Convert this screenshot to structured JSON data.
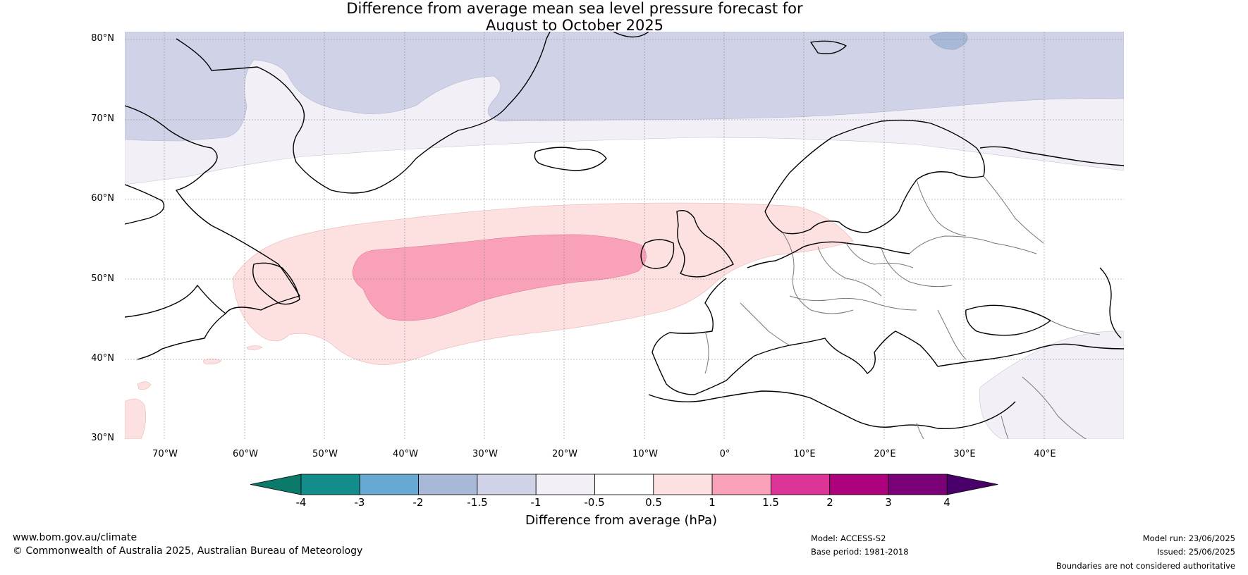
{
  "title": {
    "line1": "Difference from average mean sea level pressure forecast for",
    "line2": "August to October 2025"
  },
  "map": {
    "latitude_labels": [
      "80°N",
      "70°N",
      "60°N",
      "50°N",
      "40°N",
      "30°N"
    ],
    "longitude_labels": [
      "70°W",
      "60°W",
      "50°W",
      "40°W",
      "30°W",
      "20°W",
      "10°W",
      "0°",
      "10°E",
      "20°E",
      "30°E",
      "40°E"
    ],
    "extent": {
      "lon_min": -75,
      "lon_max": 50,
      "lat_min": 30,
      "lat_max": 81
    },
    "anomaly_regions": [
      {
        "name": "Arctic / Greenland Sea",
        "range": "-1.5 to -1",
        "color": "#d0d3e7"
      },
      {
        "name": "Subpolar North Atlantic / Scandinavia",
        "range": "-1 to -0.5",
        "color": "#f2eff6"
      },
      {
        "name": "Eastern Mediterranean",
        "range": "-1 to -0.5",
        "color": "#f2eff6"
      },
      {
        "name": "Mid-latitude North Atlantic",
        "range": "0.5 to 1",
        "color": "#fde0e0"
      },
      {
        "name": "Central North Atlantic",
        "range": "1 to 1.5",
        "color": "#f9a1b8"
      }
    ]
  },
  "colorbar": {
    "title": "Difference from average (hPa)",
    "ticks": [
      "-4",
      "-3",
      "-2",
      "-1.5",
      "-1",
      "-0.5",
      "0.5",
      "1",
      "1.5",
      "2",
      "3",
      "4"
    ],
    "colors": [
      "#138c8c",
      "#66a9d3",
      "#a8b8d7",
      "#d0d3e7",
      "#f2eff6",
      "#ffffff",
      "#fde0e0",
      "#f9a1b8",
      "#dd3497",
      "#ae017e",
      "#7a0177"
    ],
    "under_color": "#0c7a6a",
    "over_color": "#49006a"
  },
  "footer": {
    "url": "www.bom.gov.au/climate",
    "copyright": "© Commonwealth of Australia 2025, Australian Bureau of Meteorology",
    "model": "Model: ACCESS-S2",
    "base_period": "Base period: 1981-2018",
    "model_run": "Model run: 23/06/2025",
    "issued": "Issued: 25/06/2025",
    "disclaimer": "Boundaries are not considered authoritative"
  }
}
